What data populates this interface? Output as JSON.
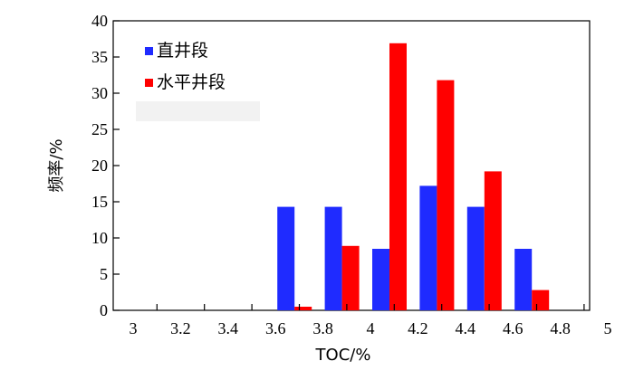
{
  "chart_data": {
    "type": "bar",
    "categories": [
      "3",
      "3.2",
      "3.4",
      "3.6",
      "3.8",
      "4",
      "4.2",
      "4.4",
      "4.6",
      "4.8",
      "5"
    ],
    "series": [
      {
        "name": "直井段",
        "color": "#1f2bff",
        "values": [
          0,
          0,
          0,
          14.3,
          14.3,
          8.5,
          17.2,
          14.3,
          8.5,
          0,
          0
        ]
      },
      {
        "name": "水平井段",
        "color": "#ff0000",
        "values": [
          0,
          0,
          0,
          0.5,
          8.9,
          36.9,
          31.8,
          19.2,
          2.8,
          0,
          0
        ]
      }
    ],
    "xlabel": "TOC/%",
    "ylabel": "频率/%",
    "ylim": [
      0,
      40
    ],
    "yticks": [
      "0",
      "5",
      "10",
      "15",
      "20",
      "25",
      "30",
      "35",
      "40"
    ],
    "grid": false,
    "legend": "top-left"
  }
}
